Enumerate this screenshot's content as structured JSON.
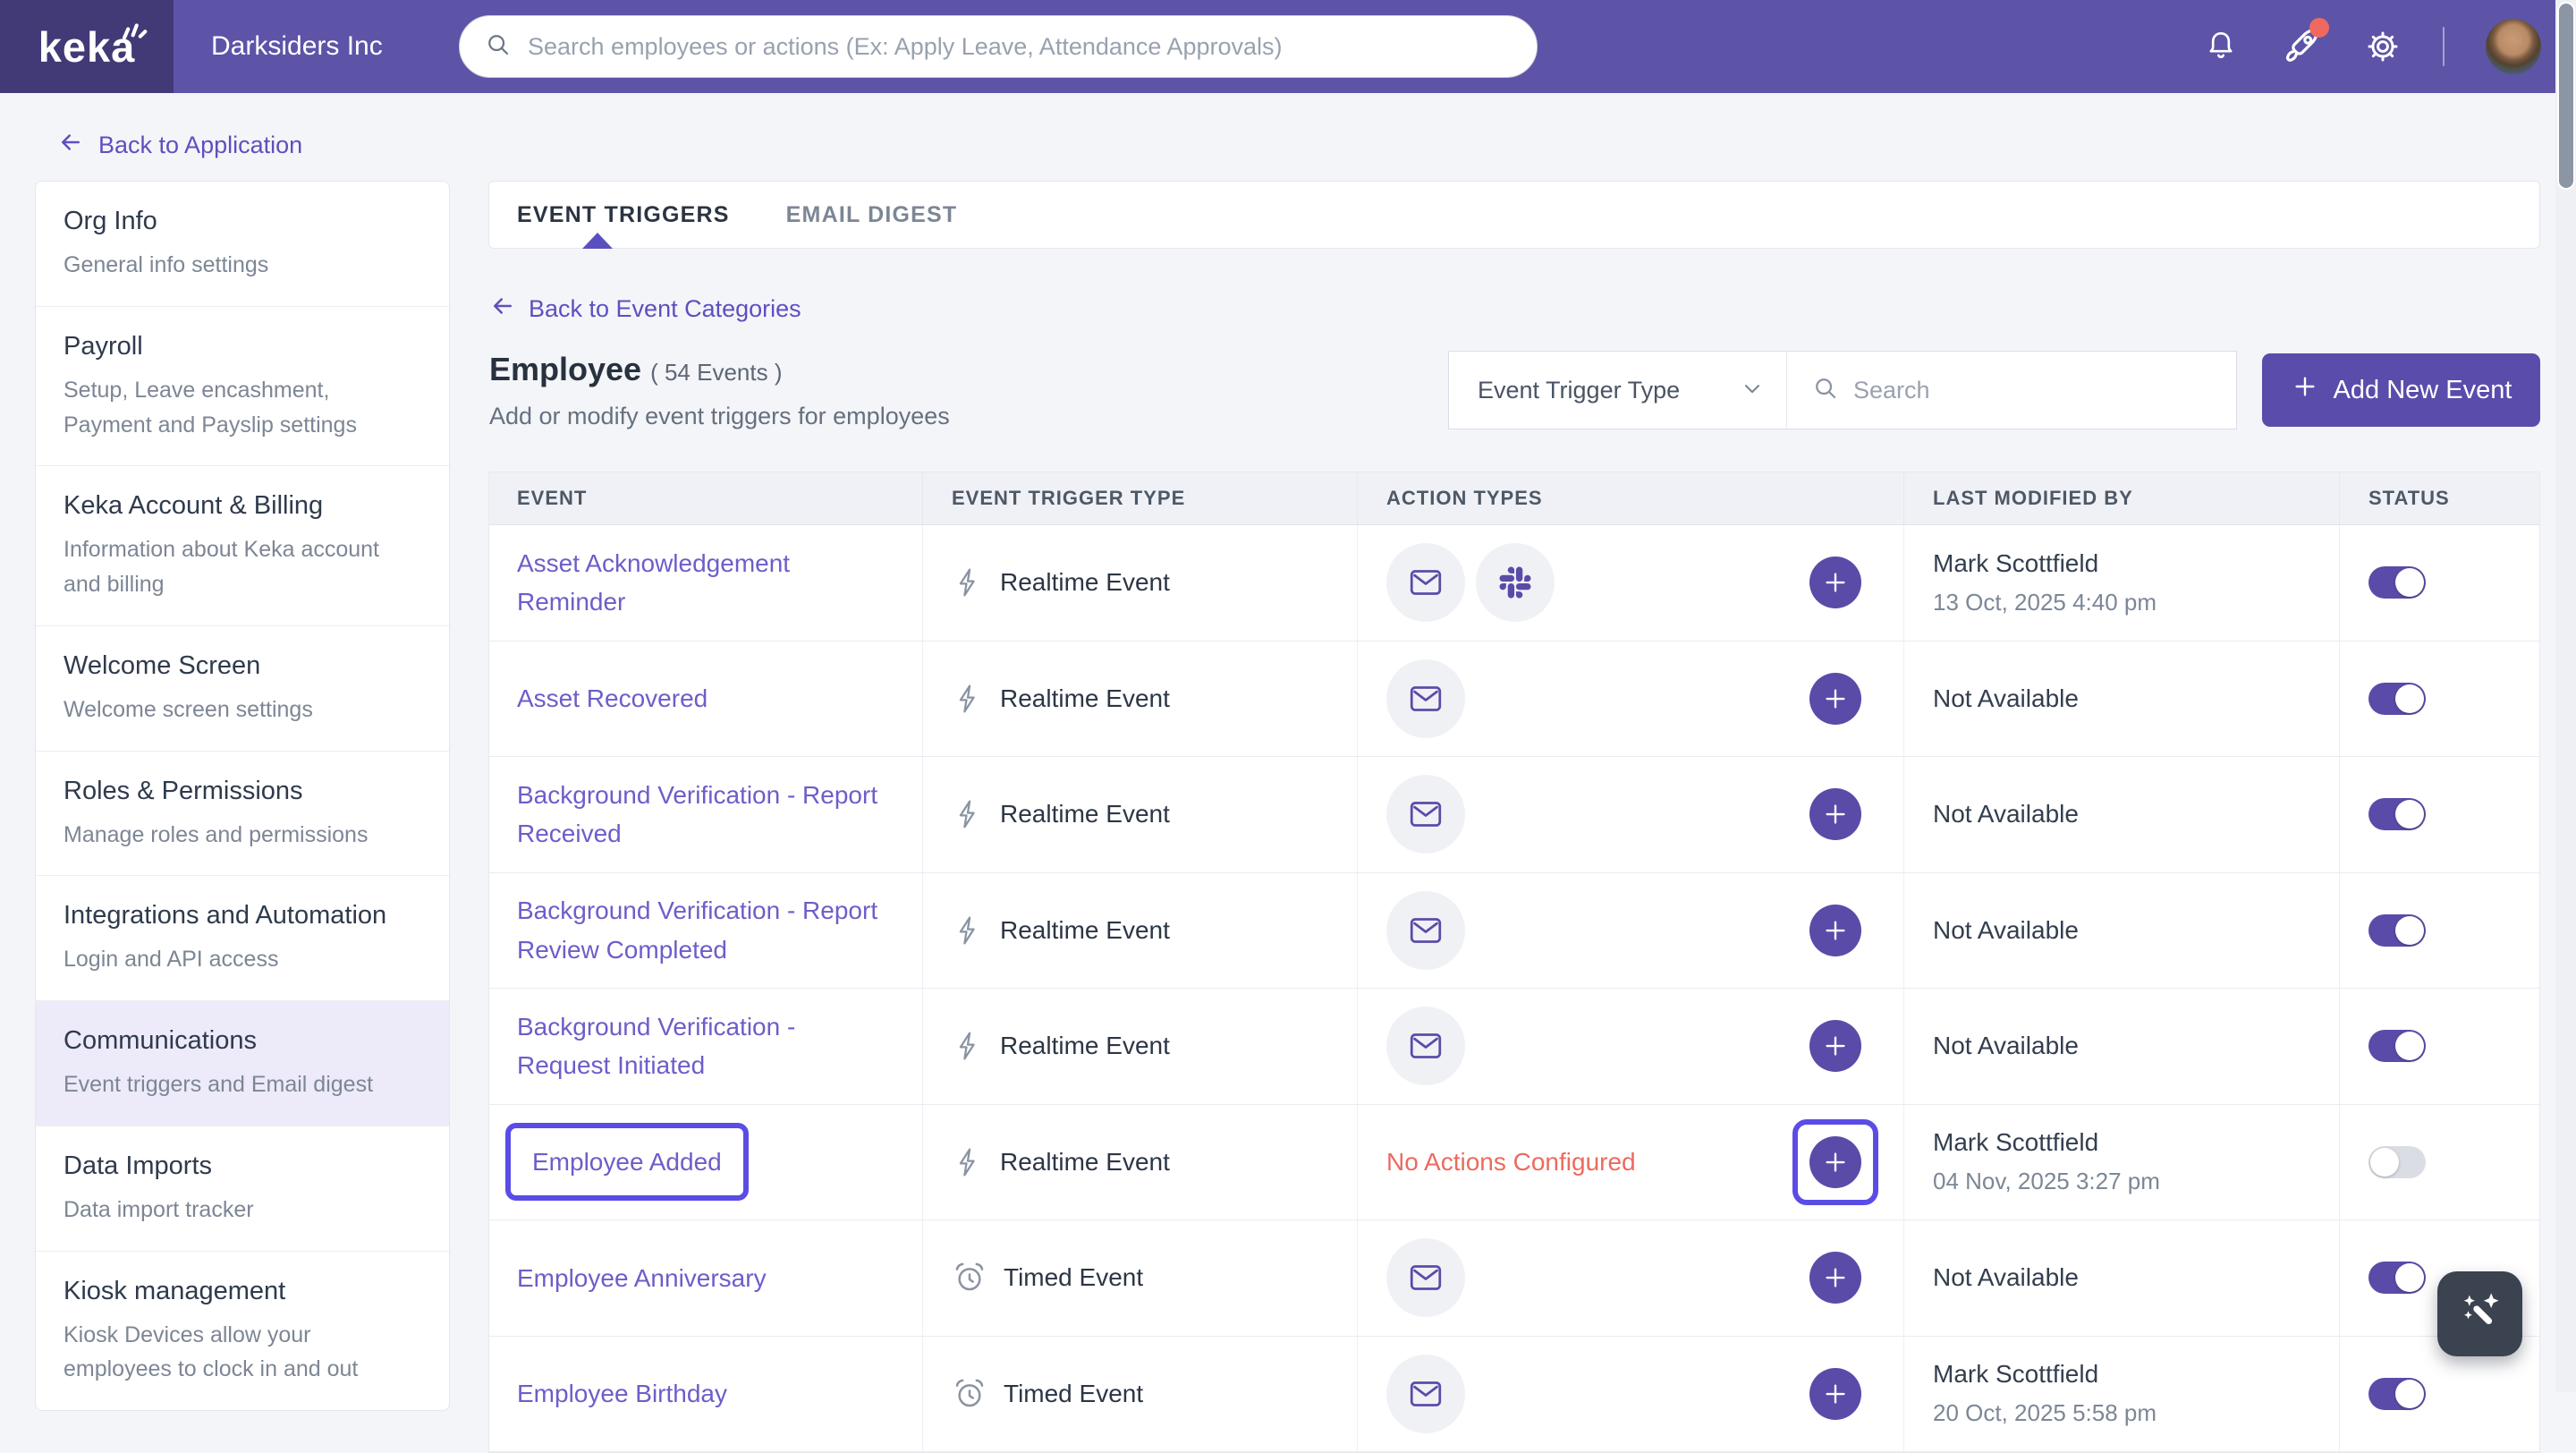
{
  "topbar": {
    "brand": "keka",
    "company": "Darksiders Inc",
    "search_placeholder": "Search employees or actions (Ex: Apply Leave, Attendance Approvals)"
  },
  "back_to_application": "Back to Application",
  "sidebar": {
    "items": [
      {
        "slug": "org-info",
        "title": "Org Info",
        "subtitle": "General info settings",
        "active": false
      },
      {
        "slug": "payroll",
        "title": "Payroll",
        "subtitle": "Setup, Leave encashment, Payment and Payslip settings",
        "active": false
      },
      {
        "slug": "keka-account-billing",
        "title": "Keka Account & Billing",
        "subtitle": "Information about Keka account and billing",
        "active": false
      },
      {
        "slug": "welcome-screen",
        "title": "Welcome Screen",
        "subtitle": "Welcome screen settings",
        "active": false
      },
      {
        "slug": "roles-permissions",
        "title": "Roles & Permissions",
        "subtitle": "Manage roles and permissions",
        "active": false
      },
      {
        "slug": "integrations-automation",
        "title": "Integrations and Automation",
        "subtitle": "Login and API access",
        "active": false
      },
      {
        "slug": "communications",
        "title": "Communications",
        "subtitle": "Event triggers and Email digest",
        "active": true
      },
      {
        "slug": "data-imports",
        "title": "Data Imports",
        "subtitle": "Data import tracker",
        "active": false
      },
      {
        "slug": "kiosk-management",
        "title": "Kiosk management",
        "subtitle": "Kiosk Devices allow your employees to clock in and out",
        "active": false
      }
    ]
  },
  "tabs": [
    {
      "label": "EVENT TRIGGERS",
      "active": true
    },
    {
      "label": "EMAIL DIGEST",
      "active": false
    }
  ],
  "back_to_categories": "Back to Event Categories",
  "section": {
    "title": "Employee",
    "count": "( 54 Events )",
    "subtitle": "Add or modify event triggers for employees"
  },
  "controls": {
    "filter_label": "Event Trigger Type",
    "search_placeholder": "Search",
    "add_button_label": "Add New Event"
  },
  "table": {
    "headers": [
      "EVENT",
      "EVENT TRIGGER TYPE",
      "ACTION TYPES",
      "LAST MODIFIED BY",
      "STATUS"
    ],
    "rows": [
      {
        "event": "Asset Acknowledgement Reminder",
        "trigger_type": "Realtime Event",
        "trigger_icon": "bolt",
        "actions": [
          "email",
          "slack"
        ],
        "no_actions_text": null,
        "modified_by": "Mark Scottfield",
        "modified_date": "13 Oct, 2025 4:40 pm",
        "status_on": true,
        "highlighted": false
      },
      {
        "event": "Asset Recovered",
        "trigger_type": "Realtime Event",
        "trigger_icon": "bolt",
        "actions": [
          "email"
        ],
        "no_actions_text": null,
        "modified_by": "Not Available",
        "modified_date": null,
        "status_on": true,
        "highlighted": false
      },
      {
        "event": "Background Verification - Report Received",
        "trigger_type": "Realtime Event",
        "trigger_icon": "bolt",
        "actions": [
          "email"
        ],
        "no_actions_text": null,
        "modified_by": "Not Available",
        "modified_date": null,
        "status_on": true,
        "highlighted": false
      },
      {
        "event": "Background Verification - Report Review Completed",
        "trigger_type": "Realtime Event",
        "trigger_icon": "bolt",
        "actions": [
          "email"
        ],
        "no_actions_text": null,
        "modified_by": "Not Available",
        "modified_date": null,
        "status_on": true,
        "highlighted": false
      },
      {
        "event": "Background Verification - Request Initiated",
        "trigger_type": "Realtime Event",
        "trigger_icon": "bolt",
        "actions": [
          "email"
        ],
        "no_actions_text": null,
        "modified_by": "Not Available",
        "modified_date": null,
        "status_on": true,
        "highlighted": false
      },
      {
        "event": "Employee Added",
        "trigger_type": "Realtime Event",
        "trigger_icon": "bolt",
        "actions": [],
        "no_actions_text": "No Actions Configured",
        "modified_by": "Mark Scottfield",
        "modified_date": "04 Nov, 2025 3:27 pm",
        "status_on": false,
        "highlighted": true
      },
      {
        "event": "Employee Anniversary",
        "trigger_type": "Timed Event",
        "trigger_icon": "clock",
        "actions": [
          "email"
        ],
        "no_actions_text": null,
        "modified_by": "Not Available",
        "modified_date": null,
        "status_on": true,
        "highlighted": false
      },
      {
        "event": "Employee Birthday",
        "trigger_type": "Timed Event",
        "trigger_icon": "clock",
        "actions": [
          "email"
        ],
        "no_actions_text": null,
        "modified_by": "Mark Scottfield",
        "modified_date": "20 Oct, 2025 5:58 pm",
        "status_on": true,
        "highlighted": false
      }
    ]
  },
  "colors": {
    "accent": "#5b4ba8",
    "topbar": "#5d54a8",
    "logo_block": "#423a76",
    "link": "#6c5ec9",
    "warning": "#ed6a5e",
    "highlight_ring": "#5b4ce6",
    "fab_bg": "#3b4250",
    "active_item_bg": "#edeafa"
  }
}
